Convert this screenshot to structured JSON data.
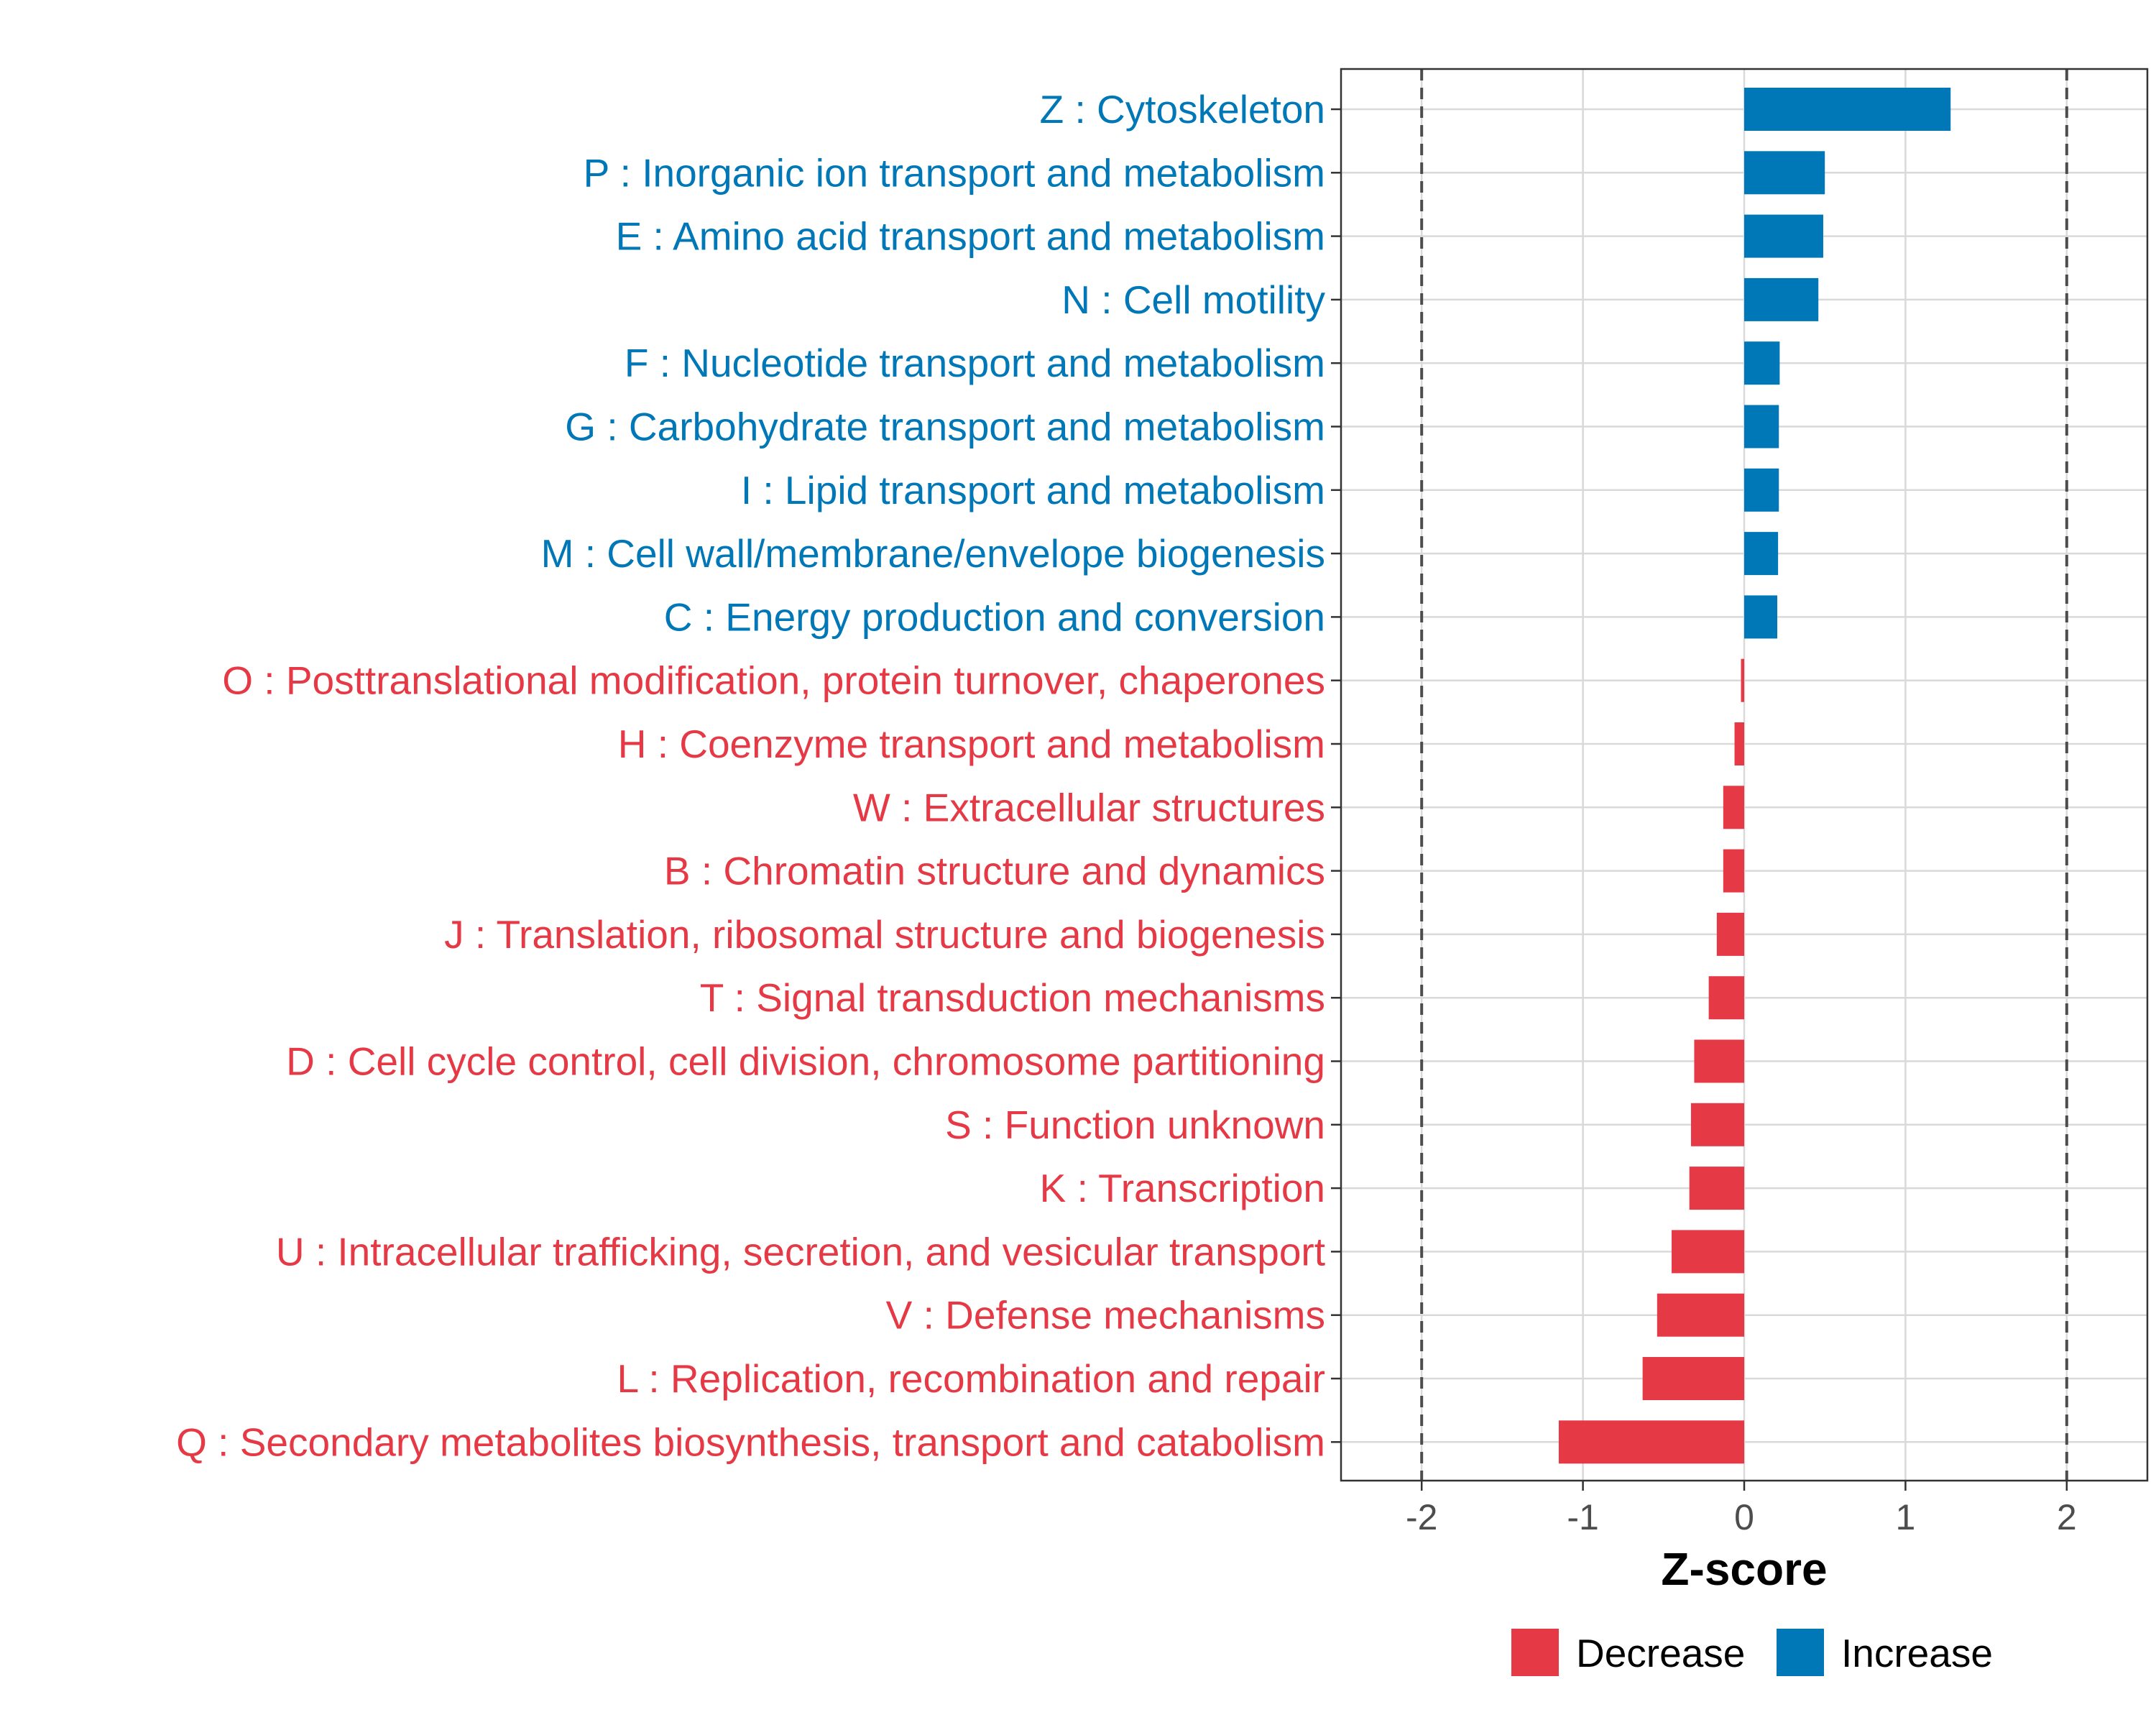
{
  "colors": {
    "decrease": "#e63946",
    "increase": "#0077b6",
    "grid": "#d9d9d9",
    "refline": "#4d4d4d"
  },
  "chart_data": {
    "type": "bar",
    "orientation": "horizontal",
    "xlabel": "Z-score",
    "xlim": [
      -2.5,
      2.5
    ],
    "xticks": [
      -2,
      -1,
      0,
      1,
      2
    ],
    "xtick_labels": [
      "-2",
      "-1",
      "0",
      "1",
      "2"
    ],
    "reference_lines": [
      -2,
      2
    ],
    "legend": {
      "position": "bottom",
      "entries": [
        {
          "label": "Decrease",
          "color_key": "decrease"
        },
        {
          "label": "Increase",
          "color_key": "increase"
        }
      ]
    },
    "categories": [
      {
        "label": "Z : Cytoskeleton",
        "value": 1.28,
        "group": "increase"
      },
      {
        "label": "P : Inorganic ion transport and metabolism",
        "value": 0.5,
        "group": "increase"
      },
      {
        "label": "E : Amino acid transport and metabolism",
        "value": 0.49,
        "group": "increase"
      },
      {
        "label": "N : Cell motility",
        "value": 0.46,
        "group": "increase"
      },
      {
        "label": "F : Nucleotide transport and metabolism",
        "value": 0.22,
        "group": "increase"
      },
      {
        "label": "G : Carbohydrate transport and metabolism",
        "value": 0.215,
        "group": "increase"
      },
      {
        "label": "I : Lipid transport and metabolism",
        "value": 0.215,
        "group": "increase"
      },
      {
        "label": "M : Cell wall/membrane/envelope biogenesis",
        "value": 0.21,
        "group": "increase"
      },
      {
        "label": "C : Energy production and conversion",
        "value": 0.205,
        "group": "increase"
      },
      {
        "label": "O : Posttranslational modification, protein turnover, chaperones",
        "value": -0.02,
        "group": "decrease"
      },
      {
        "label": "H : Coenzyme transport and metabolism",
        "value": -0.06,
        "group": "decrease"
      },
      {
        "label": "W : Extracellular structures",
        "value": -0.13,
        "group": "decrease"
      },
      {
        "label": "B : Chromatin structure and dynamics",
        "value": -0.13,
        "group": "decrease"
      },
      {
        "label": "J : Translation, ribosomal structure and biogenesis",
        "value": -0.17,
        "group": "decrease"
      },
      {
        "label": "T : Signal transduction mechanisms",
        "value": -0.22,
        "group": "decrease"
      },
      {
        "label": "D : Cell cycle control, cell division, chromosome partitioning",
        "value": -0.31,
        "group": "decrease"
      },
      {
        "label": "S : Function unknown",
        "value": -0.33,
        "group": "decrease"
      },
      {
        "label": "K : Transcription",
        "value": -0.34,
        "group": "decrease"
      },
      {
        "label": "U : Intracellular trafficking, secretion, and vesicular transport",
        "value": -0.45,
        "group": "decrease"
      },
      {
        "label": "V : Defense mechanisms",
        "value": -0.54,
        "group": "decrease"
      },
      {
        "label": "L : Replication, recombination and repair",
        "value": -0.63,
        "group": "decrease"
      },
      {
        "label": "Q : Secondary metabolites biosynthesis, transport and catabolism",
        "value": -1.15,
        "group": "decrease"
      }
    ]
  }
}
